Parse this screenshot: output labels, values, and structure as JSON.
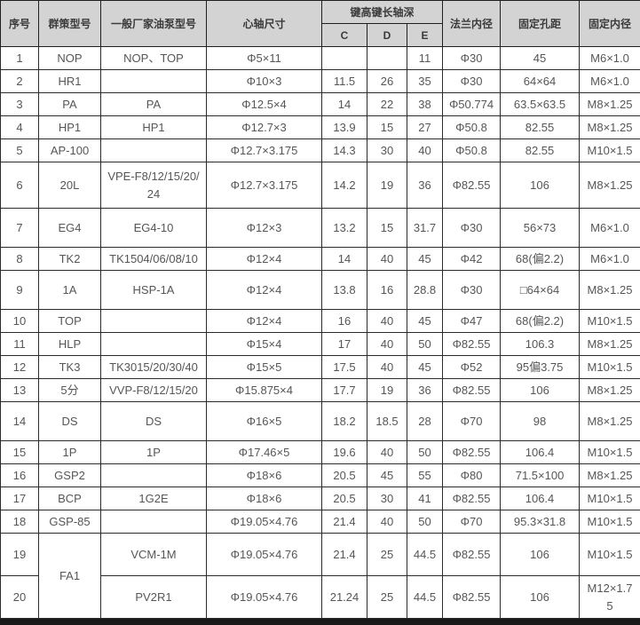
{
  "table": {
    "headers": {
      "xuhao": "序号",
      "qunce": "群策型号",
      "changjia": "一般厂家油泵型号",
      "xinzhou": "心轴尺寸",
      "jian_group": "键高键长轴深",
      "c": "C",
      "d": "D",
      "e": "E",
      "falan": "法兰内径",
      "kongju": "固定孔距",
      "neijing": "固定内径"
    },
    "rows": [
      [
        "1",
        "NOP",
        "NOP、TOP",
        "Φ5×11",
        "",
        "",
        "11",
        "Φ30",
        "45",
        "M6×1.0"
      ],
      [
        "2",
        "HR1",
        "",
        "Φ10×3",
        "11.5",
        "26",
        "35",
        "Φ30",
        "64×64",
        "M6×1.0"
      ],
      [
        "3",
        "PA",
        "PA",
        "Φ12.5×4",
        "14",
        "22",
        "38",
        "Φ50.774",
        "63.5×63.5",
        "M8×1.25"
      ],
      [
        "4",
        "HP1",
        "HP1",
        "Φ12.7×3",
        "13.9",
        "15",
        "27",
        "Φ50.8",
        "82.55",
        "M8×1.25"
      ],
      [
        "5",
        "AP-100",
        "",
        "Φ12.7×3.175",
        "14.3",
        "30",
        "40",
        "Φ50.8",
        "82.55",
        "M10×1.5"
      ],
      [
        "6",
        "20L",
        "VPE-F8/12/15/20/24",
        "Φ12.7×3.175",
        "14.2",
        "19",
        "36",
        "Φ82.55",
        "106",
        "M8×1.25"
      ],
      [
        "7",
        "EG4",
        "EG4-10",
        "Φ12×3",
        "13.2",
        "15",
        "31.7",
        "Φ30",
        "56×73",
        "M6×1.0"
      ],
      [
        "8",
        "TK2",
        "TK1504/06/08/10",
        "Φ12×4",
        "14",
        "40",
        "45",
        "Φ42",
        "68(偏2.2)",
        "M6×1.0"
      ],
      [
        "9",
        "1A",
        "HSP-1A",
        "Φ12×4",
        "13.8",
        "16",
        "28.8",
        "Φ30",
        "□64×64",
        "M8×1.25"
      ],
      [
        "10",
        "TOP",
        "",
        "Φ12×4",
        "16",
        "40",
        "45",
        "Φ47",
        "68(偏2.2)",
        "M10×1.5"
      ],
      [
        "11",
        "HLP",
        "",
        "Φ15×4",
        "17",
        "40",
        "50",
        "Φ82.55",
        "106.3",
        "M8×1.25"
      ],
      [
        "12",
        "TK3",
        "TK3015/20/30/40",
        "Φ15×5",
        "17.5",
        "40",
        "45",
        "Φ52",
        "95偏3.75",
        "M10×1.5"
      ],
      [
        "13",
        "5分",
        "VVP-F8/12/15/20",
        "Φ15.875×4",
        "17.7",
        "19",
        "36",
        "Φ82.55",
        "106",
        "M8×1.25"
      ],
      [
        "14",
        "DS",
        "DS",
        "Φ16×5",
        "18.2",
        "18.5",
        "28",
        "Φ70",
        "98",
        "M8×1.25"
      ],
      [
        "15",
        "1P",
        "1P",
        "Φ17.46×5",
        "19.6",
        "40",
        "50",
        "Φ82.55",
        "106.4",
        "M10×1.5"
      ],
      [
        "16",
        "GSP2",
        "",
        "Φ18×6",
        "20.5",
        "45",
        "55",
        "Φ80",
        "71.5×100",
        "M8×1.25"
      ],
      [
        "17",
        "BCP",
        "1G2E",
        "Φ18×6",
        "20.5",
        "30",
        "41",
        "Φ82.55",
        "106.4",
        "M10×1.5"
      ],
      [
        "18",
        "GSP-85",
        "",
        "Φ19.05×4.76",
        "21.4",
        "40",
        "50",
        "Φ70",
        "95.3×31.8",
        "M10×1.5"
      ],
      [
        "19",
        "FA1",
        "VCM-1M",
        "Φ19.05×4.76",
        "21.4",
        "25",
        "44.5",
        "Φ82.55",
        "106",
        "M10×1.5"
      ],
      [
        "20",
        "",
        "PV2R1",
        "Φ19.05×4.76",
        "21.24",
        "25",
        "44.5",
        "Φ82.55",
        "106",
        "M12×1.75"
      ]
    ],
    "merges": [
      {
        "row": 18,
        "col": 1,
        "rowspan": 2
      }
    ]
  }
}
